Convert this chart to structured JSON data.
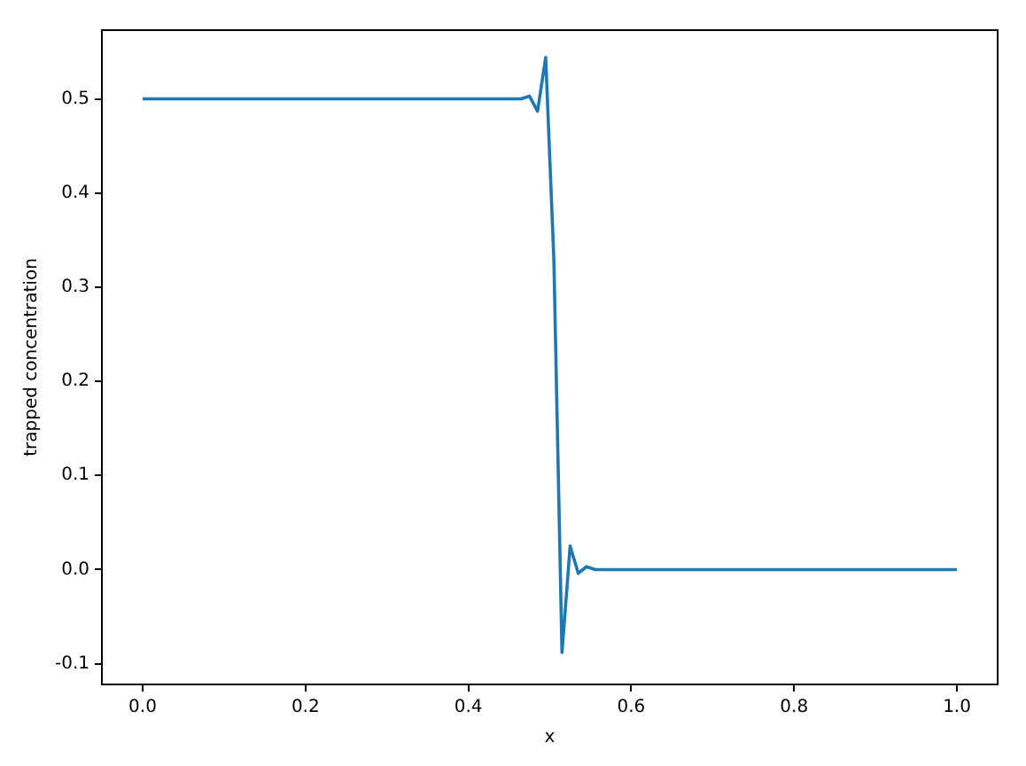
{
  "chart_data": {
    "type": "line",
    "xlabel": "x",
    "ylabel": "trapped concentration",
    "series": [
      {
        "color": "#1f77b4",
        "x": [
          0,
          0.465,
          0.475,
          0.485,
          0.495,
          0.505,
          0.515,
          0.525,
          0.535,
          0.545,
          0.556,
          1
        ],
        "values": [
          0.5,
          0.5,
          0.503,
          0.487,
          0.544,
          0.33,
          -0.088,
          0.025,
          -0.004,
          0.003,
          0,
          0
        ]
      }
    ],
    "xlim": [
      -0.05,
      1.05
    ],
    "xticks": [
      {
        "value": 0,
        "label": "0.0"
      },
      0.2,
      0.4,
      0.6,
      0.8,
      {
        "value": 1,
        "label": "1.0"
      }
    ],
    "ylim": [
      -0.122,
      0.573
    ],
    "yticks": [
      -0.1,
      {
        "value": 0,
        "label": "0.0"
      },
      0.1,
      0.2,
      0.3,
      0.4,
      0.5
    ],
    "grid": false,
    "legend": false,
    "marker": "none",
    "line_style": "solid"
  }
}
